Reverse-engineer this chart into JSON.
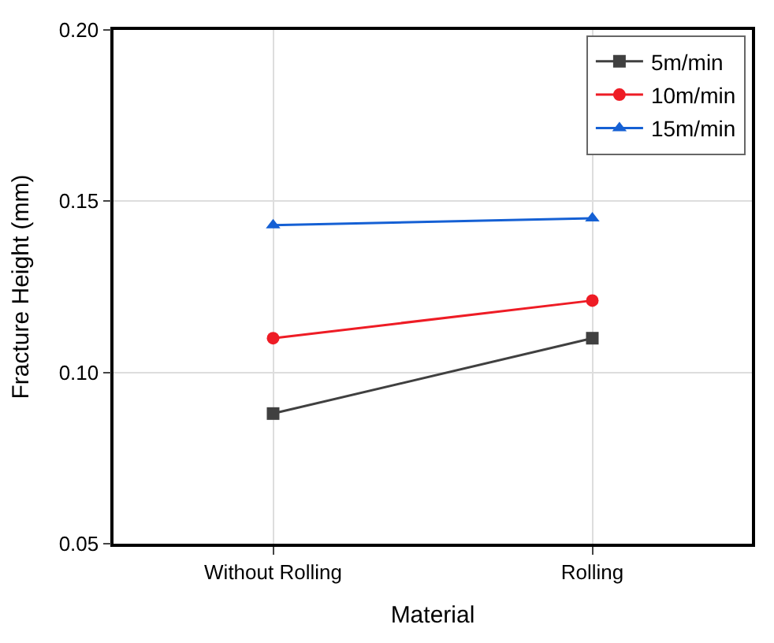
{
  "chart_data": {
    "type": "line",
    "xlabel": "Material",
    "ylabel": "Fracture Height (mm)",
    "categories": [
      "Without Rolling",
      "Rolling"
    ],
    "series": [
      {
        "name": "5m/min",
        "color": "#404040",
        "values": [
          0.088,
          0.11
        ],
        "marker": "square"
      },
      {
        "name": "10m/min",
        "color": "#ee1c25",
        "values": [
          0.11,
          0.121
        ],
        "marker": "circle"
      },
      {
        "name": "15m/min",
        "color": "#1560d4",
        "values": [
          0.143,
          0.145
        ],
        "marker": "triangle"
      }
    ],
    "ylim": [
      0.05,
      0.2
    ],
    "yticks": [
      0.05,
      {
        "value": 0.1,
        "label": "0.10"
      },
      0.15,
      {
        "value": 0.2,
        "label": "0.20"
      }
    ],
    "grid": true,
    "legend": "top right",
    "line_style": "solid"
  }
}
